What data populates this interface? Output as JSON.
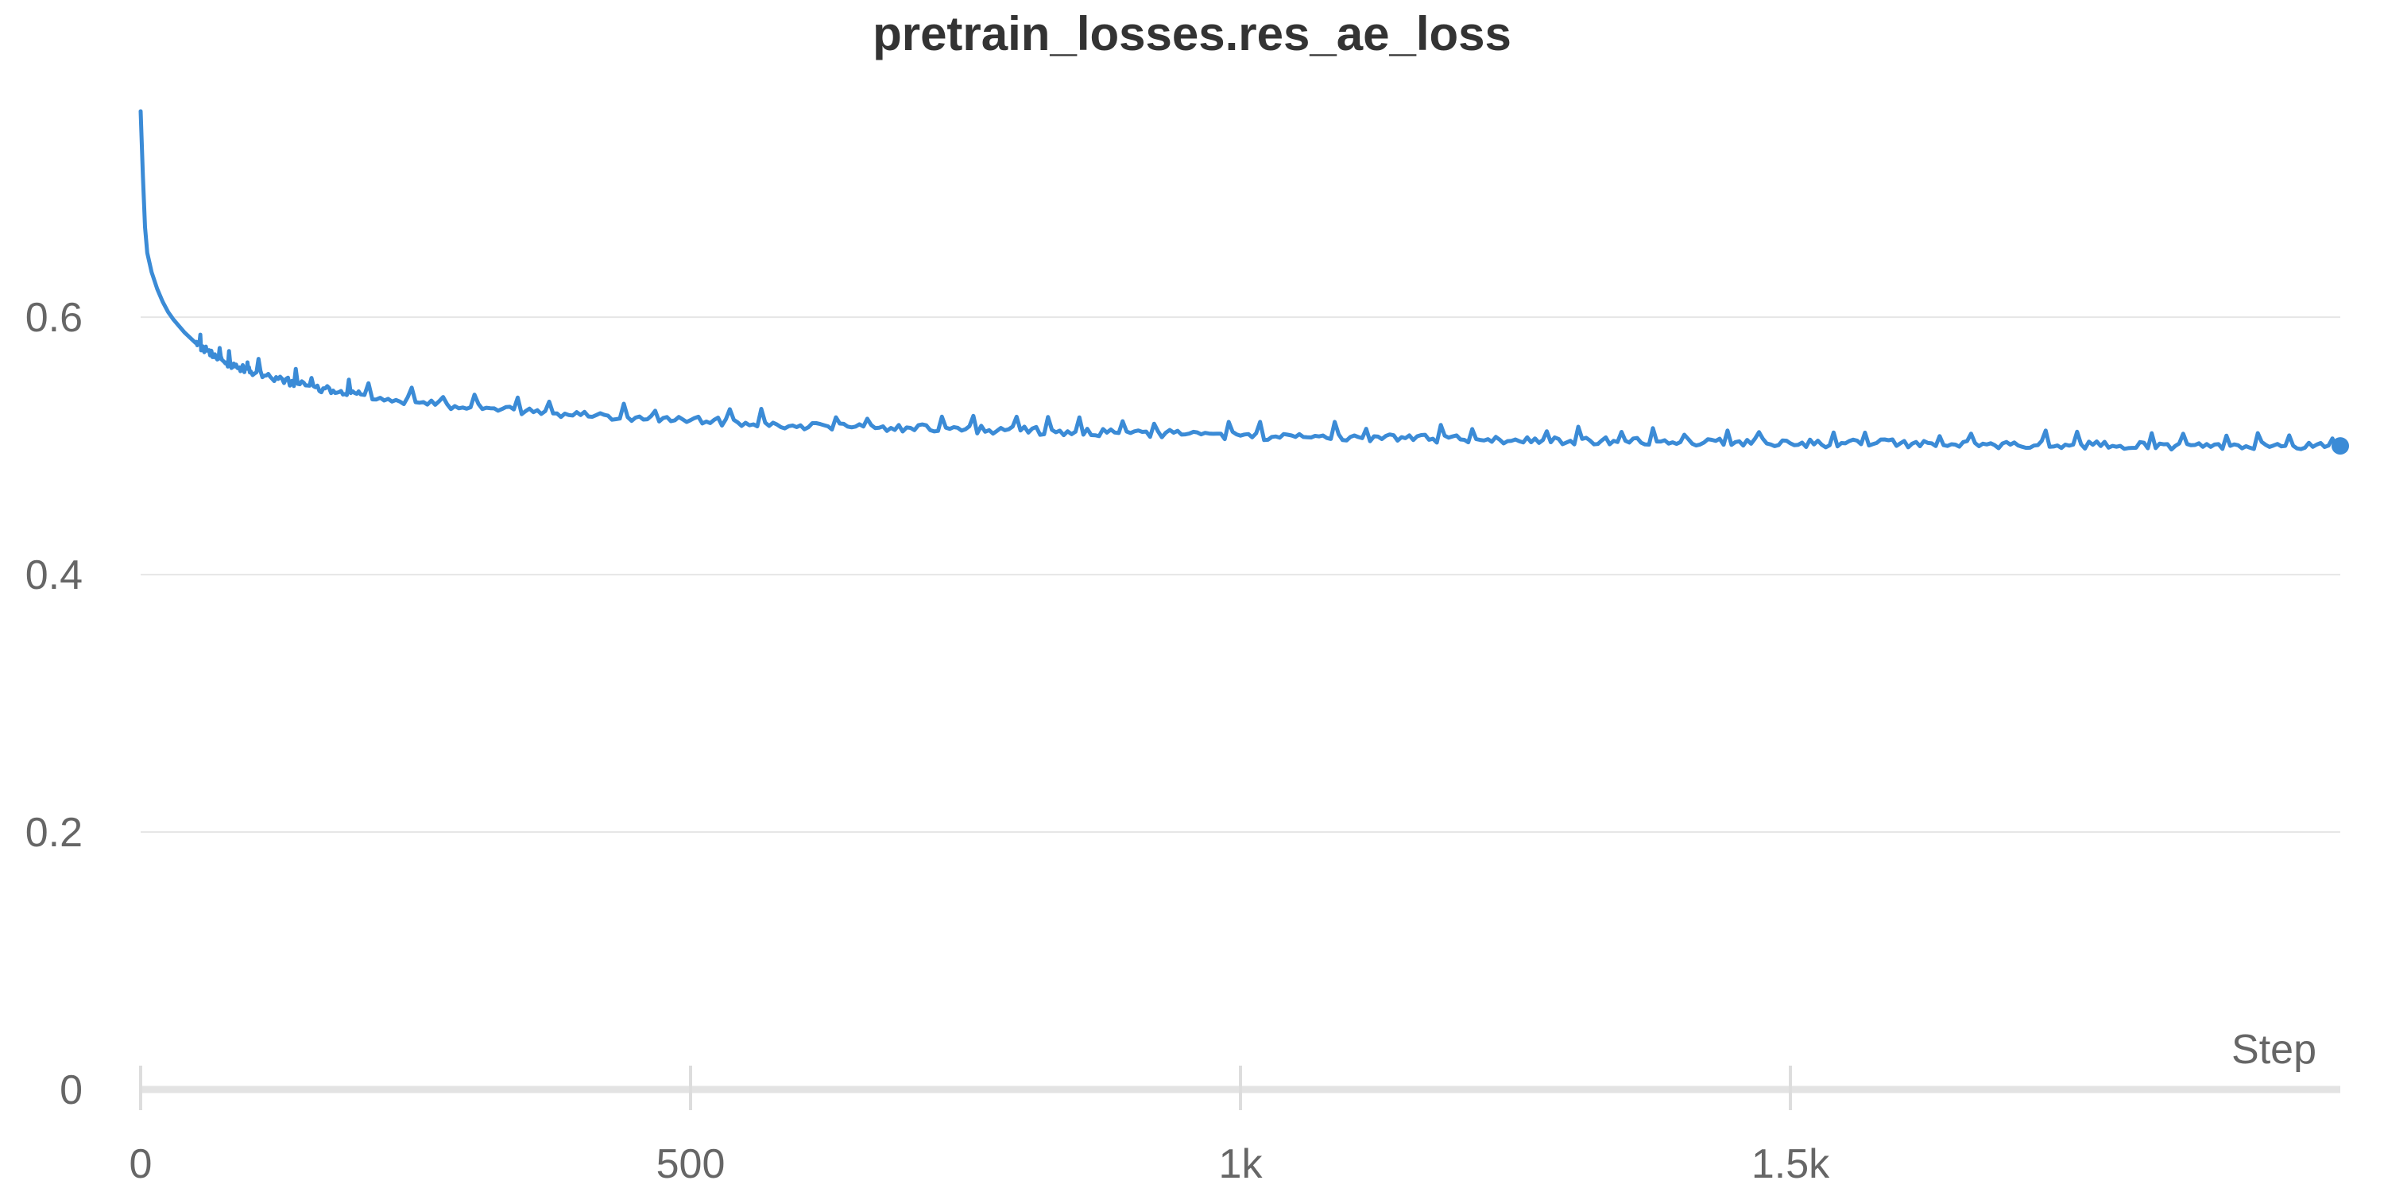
{
  "chart_data": {
    "type": "line",
    "title": "pretrain_losses.res_ae_loss",
    "xlabel": "Step",
    "ylabel": "",
    "xlim": [
      0,
      2000
    ],
    "ylim": [
      0,
      0.76
    ],
    "x_ticks": [
      {
        "value": 0,
        "label": "0"
      },
      {
        "value": 500,
        "label": "500"
      },
      {
        "value": 1000,
        "label": "1k"
      },
      {
        "value": 1500,
        "label": "1.5k"
      }
    ],
    "y_ticks": [
      {
        "value": 0,
        "label": "0"
      },
      {
        "value": 0.2,
        "label": "0.2"
      },
      {
        "value": 0.4,
        "label": "0.4"
      },
      {
        "value": 0.6,
        "label": "0.6"
      }
    ],
    "grid": true,
    "legend": "none",
    "series": [
      {
        "color": "#3b8bd6",
        "x": [
          0,
          2,
          4,
          6,
          10,
          15,
          20,
          25,
          30,
          40,
          50,
          60,
          75,
          90,
          100,
          125,
          150,
          175,
          200,
          250,
          300,
          350,
          400,
          450,
          500,
          550,
          600,
          650,
          700,
          750,
          800,
          850,
          900,
          950,
          1000,
          1050,
          1100,
          1150,
          1200,
          1250,
          1300,
          1350,
          1400,
          1450,
          1500,
          1550,
          1600,
          1650,
          1700,
          1750,
          1800,
          1850,
          1900,
          1950,
          2000
        ],
        "y": [
          0.76,
          0.71,
          0.67,
          0.65,
          0.635,
          0.622,
          0.612,
          0.604,
          0.598,
          0.588,
          0.58,
          0.574,
          0.566,
          0.561,
          0.558,
          0.552,
          0.547,
          0.543,
          0.54,
          0.534,
          0.53,
          0.527,
          0.524,
          0.522,
          0.52,
          0.518,
          0.516,
          0.515,
          0.514,
          0.513,
          0.512,
          0.511,
          0.51,
          0.509,
          0.508,
          0.507,
          0.507,
          0.506,
          0.505,
          0.505,
          0.504,
          0.504,
          0.503,
          0.503,
          0.502,
          0.502,
          0.502,
          0.501,
          0.501,
          0.501,
          0.5,
          0.5,
          0.5,
          0.5,
          0.5
        ]
      }
    ]
  }
}
